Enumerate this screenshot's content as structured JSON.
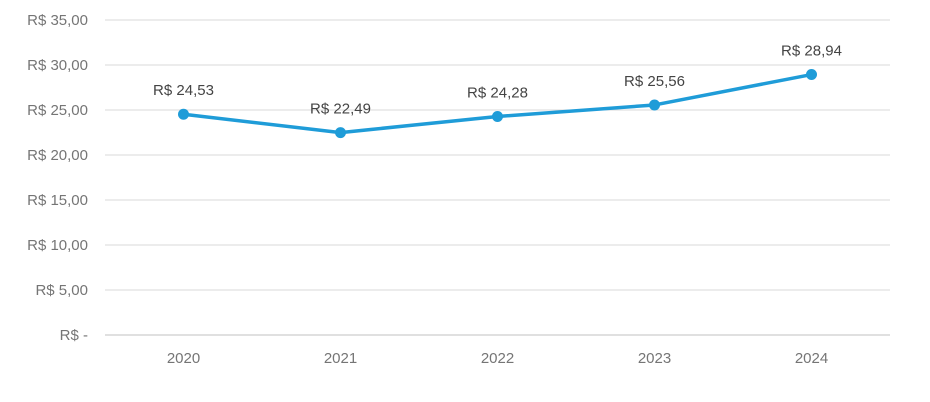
{
  "chart": {
    "colors": {
      "line": "#1F9CD8",
      "gridline": "#D9D9D9",
      "axis_line": "#C0C0C0",
      "axis_text": "#757575",
      "data_label_text": "#444444",
      "background": "#FFFFFF"
    }
  },
  "chart_data": {
    "type": "line",
    "title": "",
    "xlabel": "",
    "ylabel": "",
    "categories": [
      "2020",
      "2021",
      "2022",
      "2023",
      "2024"
    ],
    "values": [
      24.53,
      22.49,
      24.28,
      25.56,
      28.94
    ],
    "data_labels": [
      "R$ 24,53",
      "R$ 22,49",
      "R$ 24,28",
      "R$ 25,56",
      "R$ 28,94"
    ],
    "currency": "R$",
    "y_axis": {
      "tick_labels": [
        "R$ 35,00",
        "R$ 30,00",
        "R$ 25,00",
        "R$ 20,00",
        "R$ 15,00",
        "R$ 10,00",
        "R$ 5,00",
        "R$ -"
      ],
      "tick_values": [
        35,
        30,
        25,
        20,
        15,
        10,
        5,
        0
      ],
      "range": [
        0,
        35
      ]
    },
    "grid": true,
    "legend": "none",
    "marker": "circle",
    "line_color": "#1F9CD8"
  }
}
